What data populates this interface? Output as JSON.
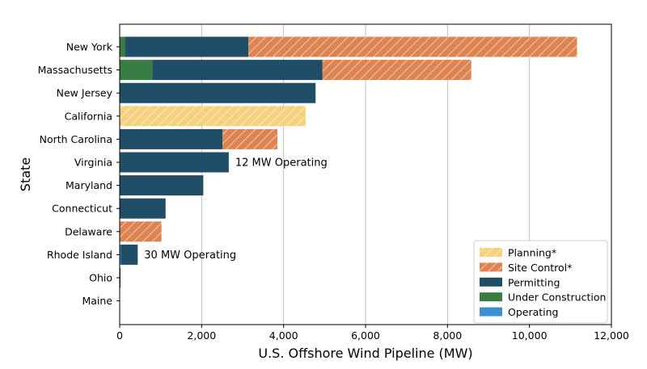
{
  "chart_data": {
    "type": "bar",
    "orientation": "horizontal",
    "stacked": true,
    "title": "",
    "xlabel": "U.S. Offshore Wind Pipeline (MW)",
    "ylabel": "State",
    "xlim": [
      0,
      12000
    ],
    "xticks": [
      0,
      2000,
      4000,
      6000,
      8000,
      10000,
      12000
    ],
    "xtick_labels": [
      "0",
      "2,000",
      "4,000",
      "6,000",
      "8,000",
      "10,000",
      "12,000"
    ],
    "grid": "x",
    "legend_position": "bottom-right",
    "categories": [
      "New York",
      "Massachusetts",
      "New Jersey",
      "California",
      "North Carolina",
      "Virginia",
      "Maryland",
      "Connecticut",
      "Delaware",
      "Rhode Island",
      "Ohio",
      "Maine"
    ],
    "series": [
      {
        "name": "Operating",
        "color": "#3b8ed0",
        "hatch": false,
        "values": [
          0,
          0,
          0,
          0,
          0,
          12,
          0,
          0,
          0,
          30,
          0,
          0
        ]
      },
      {
        "name": "Under Construction",
        "color": "#3a7d44",
        "hatch": false,
        "values": [
          130,
          800,
          0,
          0,
          0,
          0,
          0,
          0,
          0,
          0,
          0,
          0
        ]
      },
      {
        "name": "Permitting",
        "color": "#1f4e66",
        "hatch": false,
        "values": [
          3010,
          4150,
          4780,
          0,
          2510,
          2650,
          2040,
          1120,
          0,
          410,
          20,
          0
        ]
      },
      {
        "name": "Site Control*",
        "color": "#dd8452",
        "hatch": true,
        "values": [
          8020,
          3630,
          0,
          0,
          1340,
          0,
          0,
          0,
          1020,
          0,
          0,
          0
        ]
      },
      {
        "name": "Planning*",
        "color": "#f5d27f",
        "hatch": true,
        "values": [
          0,
          0,
          0,
          4540,
          0,
          0,
          0,
          0,
          0,
          0,
          0,
          0
        ]
      }
    ],
    "legend_order": [
      "Planning*",
      "Site Control*",
      "Permitting",
      "Under Construction",
      "Operating"
    ],
    "annotations": [
      {
        "category": "Virginia",
        "text": "12 MW Operating"
      },
      {
        "category": "Rhode Island",
        "text": "30 MW Operating"
      }
    ]
  }
}
